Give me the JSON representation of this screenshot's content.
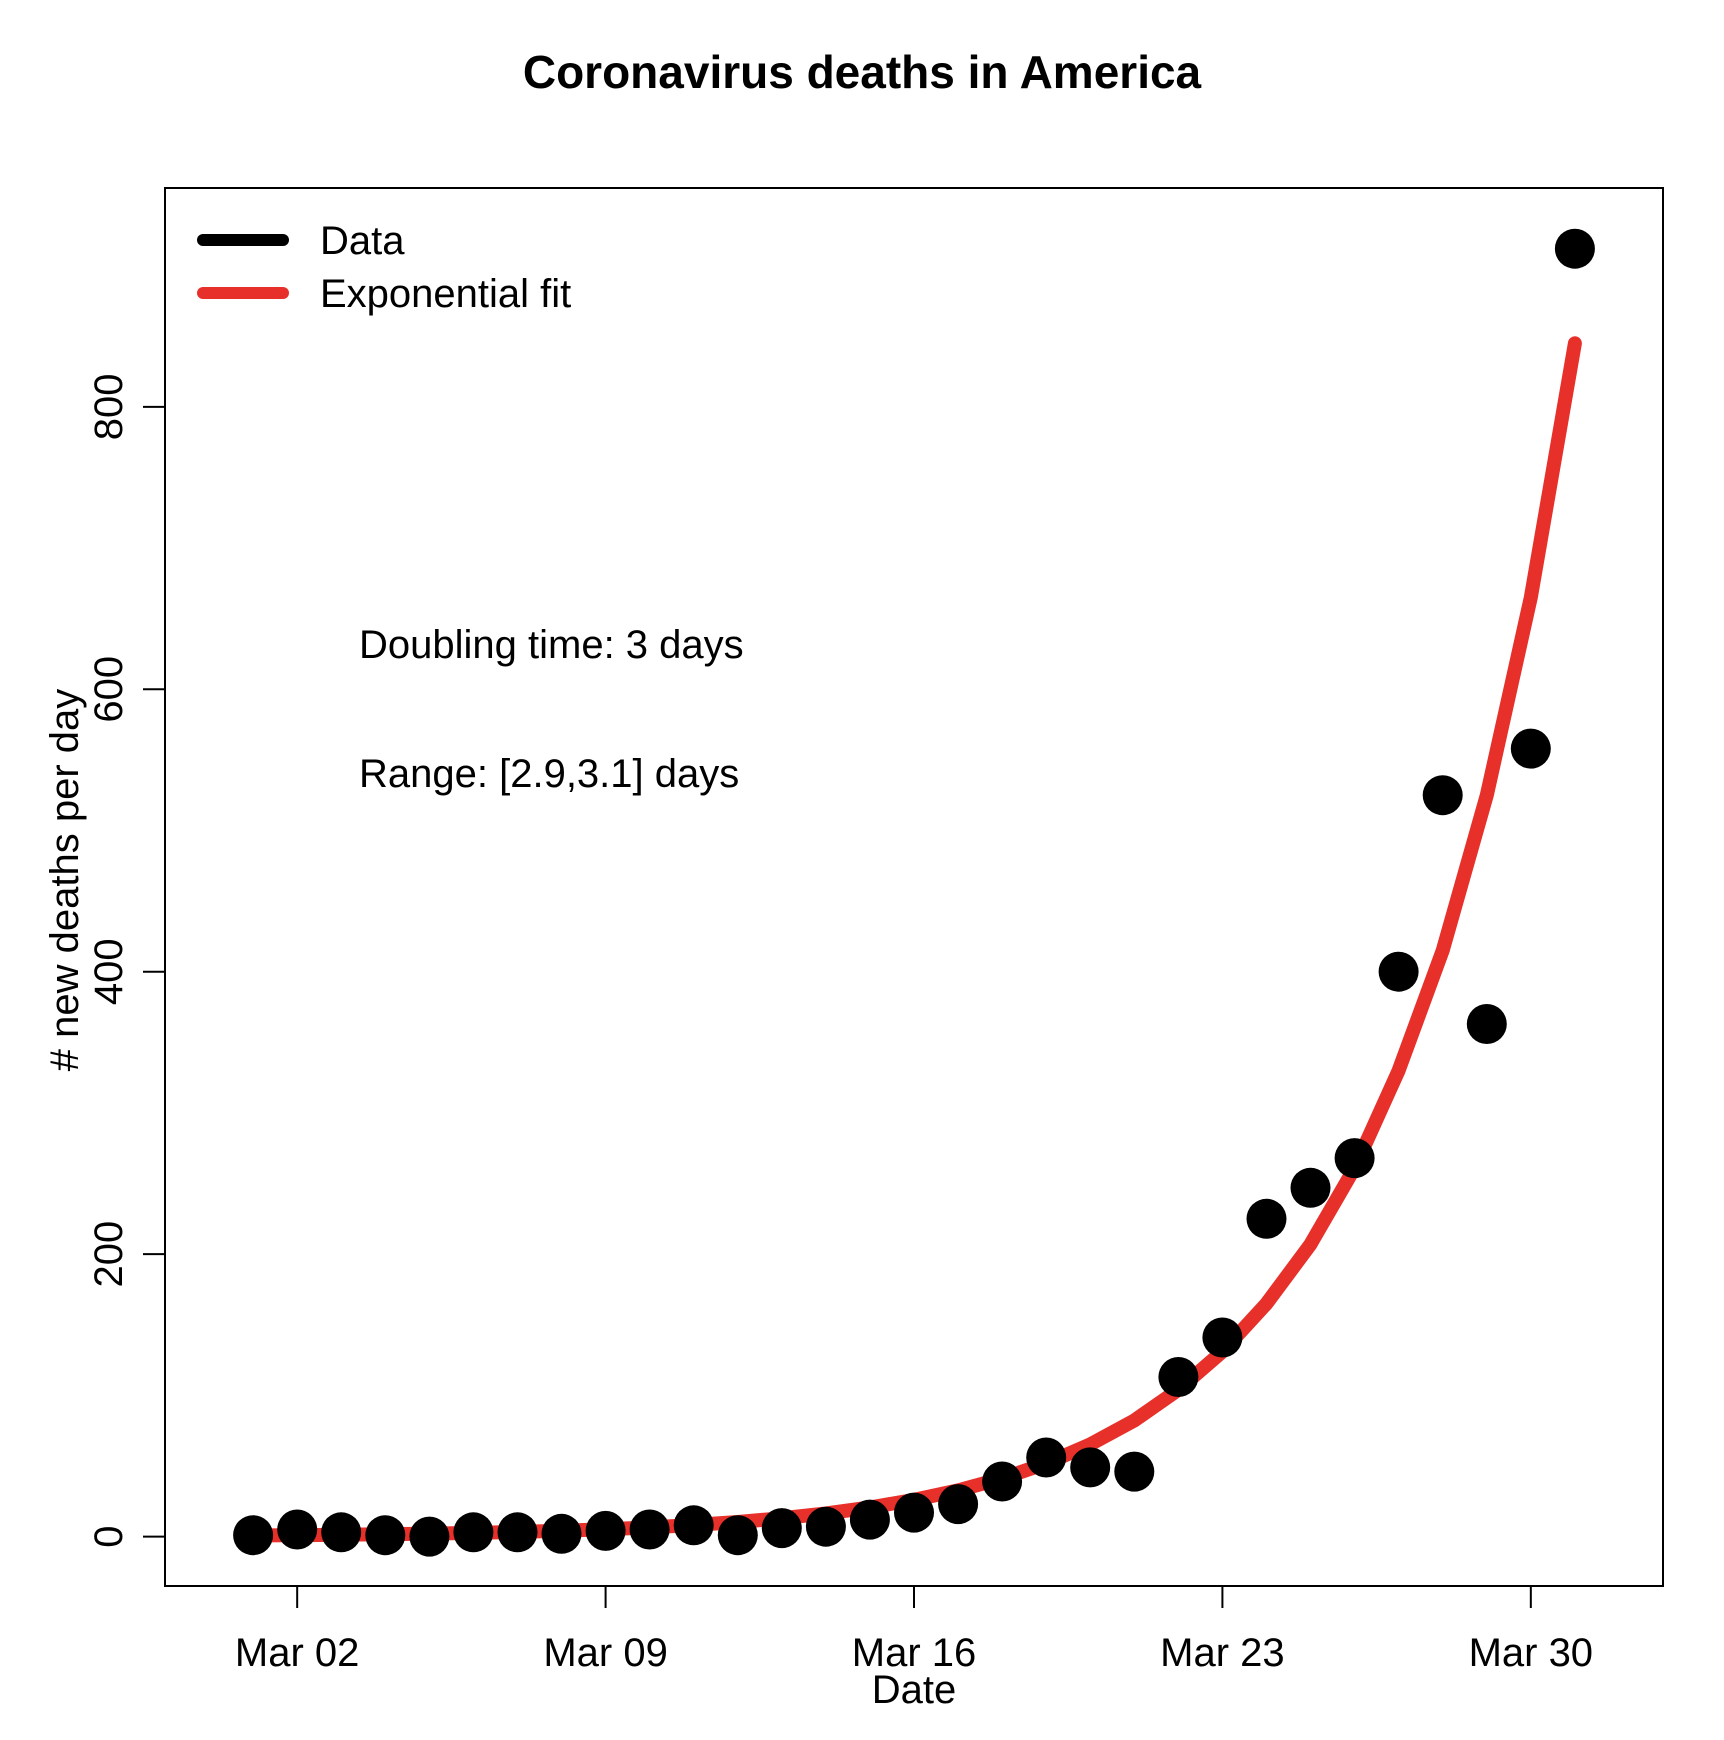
{
  "chart_data": {
    "type": "scatter",
    "title": "Coronavirus deaths in America",
    "xlabel": "Date",
    "ylabel": "# new deaths per day",
    "x_ticks": [
      "Mar 02",
      "Mar 09",
      "Mar 16",
      "Mar 23",
      "Mar 30"
    ],
    "y_ticks": [
      0,
      200,
      400,
      600,
      800
    ],
    "xlim": [
      "2020-02-28",
      "2020-04-02"
    ],
    "ylim": [
      -35,
      955
    ],
    "grid": false,
    "legend_position": "top-left",
    "legend": [
      {
        "label": "Data",
        "color": "#000000"
      },
      {
        "label": "Exponential fit",
        "color": "#e8302a"
      }
    ],
    "annotations": [
      "Doubling time: 3 days",
      "Range: [2.9,3.1] days"
    ],
    "series": [
      {
        "name": "Data",
        "kind": "scatter",
        "color": "#000000",
        "x": [
          "2020-03-01",
          "2020-03-02",
          "2020-03-03",
          "2020-03-04",
          "2020-03-05",
          "2020-03-06",
          "2020-03-07",
          "2020-03-08",
          "2020-03-09",
          "2020-03-10",
          "2020-03-11",
          "2020-03-12",
          "2020-03-13",
          "2020-03-14",
          "2020-03-15",
          "2020-03-16",
          "2020-03-17",
          "2020-03-18",
          "2020-03-19",
          "2020-03-20",
          "2020-03-21",
          "2020-03-22",
          "2020-03-23",
          "2020-03-24",
          "2020-03-25",
          "2020-03-26",
          "2020-03-27",
          "2020-03-28",
          "2020-03-29",
          "2020-03-30",
          "2020-03-31"
        ],
        "y": [
          1,
          5,
          3,
          1,
          0,
          3,
          3,
          2,
          4,
          5,
          8,
          1,
          6,
          7,
          12,
          17,
          23,
          39,
          56,
          49,
          46,
          113,
          141,
          225,
          247,
          268,
          400,
          525,
          363,
          558,
          912
        ]
      },
      {
        "name": "Exponential fit",
        "kind": "line",
        "color": "#e8302a",
        "x": [
          "2020-03-01",
          "2020-03-02",
          "2020-03-03",
          "2020-03-04",
          "2020-03-05",
          "2020-03-06",
          "2020-03-07",
          "2020-03-08",
          "2020-03-09",
          "2020-03-10",
          "2020-03-11",
          "2020-03-12",
          "2020-03-13",
          "2020-03-14",
          "2020-03-15",
          "2020-03-16",
          "2020-03-17",
          "2020-03-18",
          "2020-03-19",
          "2020-03-20",
          "2020-03-21",
          "2020-03-22",
          "2020-03-23",
          "2020-03-24",
          "2020-03-25",
          "2020-03-26",
          "2020-03-27",
          "2020-03-28",
          "2020-03-29",
          "2020-03-30",
          "2020-03-31"
        ],
        "y": [
          0.8,
          1.0,
          1.3,
          1.7,
          2.1,
          2.6,
          3.3,
          4.1,
          5.2,
          6.5,
          8.2,
          10.3,
          13.0,
          16.4,
          20.6,
          26.0,
          32.7,
          41.2,
          51.8,
          65.3,
          82.2,
          104,
          131,
          165,
          207,
          261,
          330,
          415,
          525,
          665,
          845
        ]
      }
    ]
  }
}
